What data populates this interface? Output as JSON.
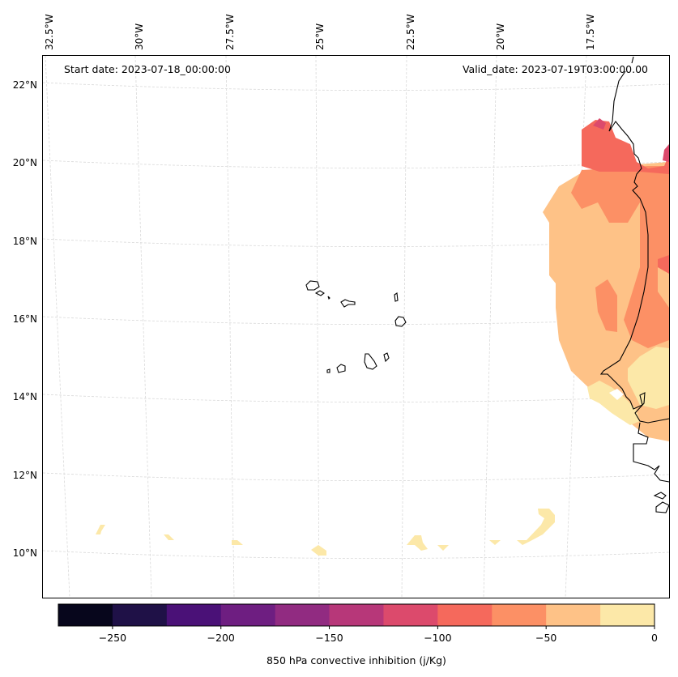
{
  "chart_data": {
    "type": "heatmap",
    "title": "",
    "map_projection": "Lambert-like conic",
    "annotations": {
      "start_date": "Start date: 2023-07-18_00:00:00",
      "valid_date": "Valid_date: 2023-07-19T03:00:00.00"
    },
    "lon_ticks": [
      "32.5°W",
      "30°W",
      "27.5°W",
      "25°W",
      "22.5°W",
      "20°W",
      "17.5°W"
    ],
    "lat_ticks": [
      "22°N",
      "20°N",
      "18°N",
      "16°N",
      "14°N",
      "12°N",
      "10°N"
    ],
    "extent": {
      "lon_min": -32.6,
      "lon_max": -16.0,
      "lat_min": 8.9,
      "lat_max": 22.7
    },
    "colorbar": {
      "label": "850 hPa convective inhibition (j/Kg)",
      "colormap": "magma",
      "levels": [
        -275,
        -250,
        -225,
        -200,
        -175,
        -150,
        -125,
        -100,
        -75,
        -50,
        -25,
        0
      ],
      "tick_values": [
        -250,
        -200,
        -150,
        -100,
        -50,
        0
      ],
      "tick_labels": [
        "−250",
        "−200",
        "−150",
        "−100",
        "−50",
        "0"
      ],
      "colors": [
        "#07061c",
        "#1f1147",
        "#4a1177",
        "#6e1e81",
        "#912b81",
        "#b73779",
        "#dc4a6c",
        "#f5695c",
        "#fc9065",
        "#fec287",
        "#fce8a8"
      ]
    },
    "regions": [
      {
        "name": "northern-mauritania-band",
        "value_range": [
          -125,
          -100
        ],
        "color": "#dc4a6c"
      },
      {
        "name": "mauritania-coast",
        "value_range": [
          -100,
          -75
        ],
        "color": "#f5695c"
      },
      {
        "name": "mauritania-interior",
        "value_range": [
          -75,
          -50
        ],
        "color": "#fc9065"
      },
      {
        "name": "senegal-offshore",
        "value_range": [
          -50,
          -25
        ],
        "color": "#fec287"
      },
      {
        "name": "senegal-gambia-inland",
        "value_range": [
          -25,
          0
        ],
        "color": "#fce8a8"
      },
      {
        "name": "southern-ocean-patches",
        "value_range": [
          -25,
          0
        ],
        "color": "#fce8a8"
      }
    ],
    "features": [
      "coastline-west-africa",
      "cape-verde-islands"
    ],
    "grid": true
  }
}
